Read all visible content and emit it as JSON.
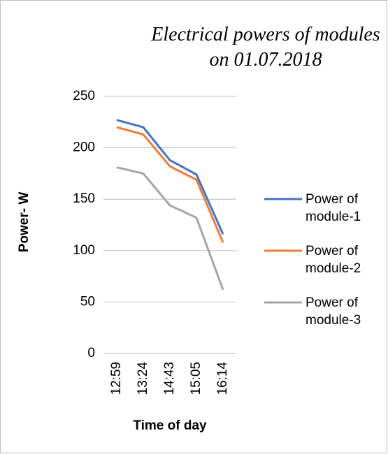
{
  "chart_data": {
    "type": "line",
    "title": "Electrical powers of modules on 01.07.2018",
    "x_label": "Time of day",
    "y_label": "Power- W",
    "categories": [
      "12:59",
      "13:24",
      "14:43",
      "15:05",
      "16:14"
    ],
    "series": [
      {
        "name": "Power of module-1",
        "color": "#4472c4",
        "values": [
          227,
          220,
          188,
          174,
          116
        ]
      },
      {
        "name": "Power of module-2",
        "color": "#ed7d31",
        "values": [
          220,
          213,
          182,
          169,
          108
        ]
      },
      {
        "name": "Power of module-3",
        "color": "#a5a5a5",
        "values": [
          181,
          175,
          144,
          132,
          62
        ]
      }
    ],
    "ylim": [
      0,
      250
    ],
    "yticks": [
      0,
      50,
      100,
      150,
      200,
      250
    ],
    "grid": true,
    "legend": "right"
  }
}
